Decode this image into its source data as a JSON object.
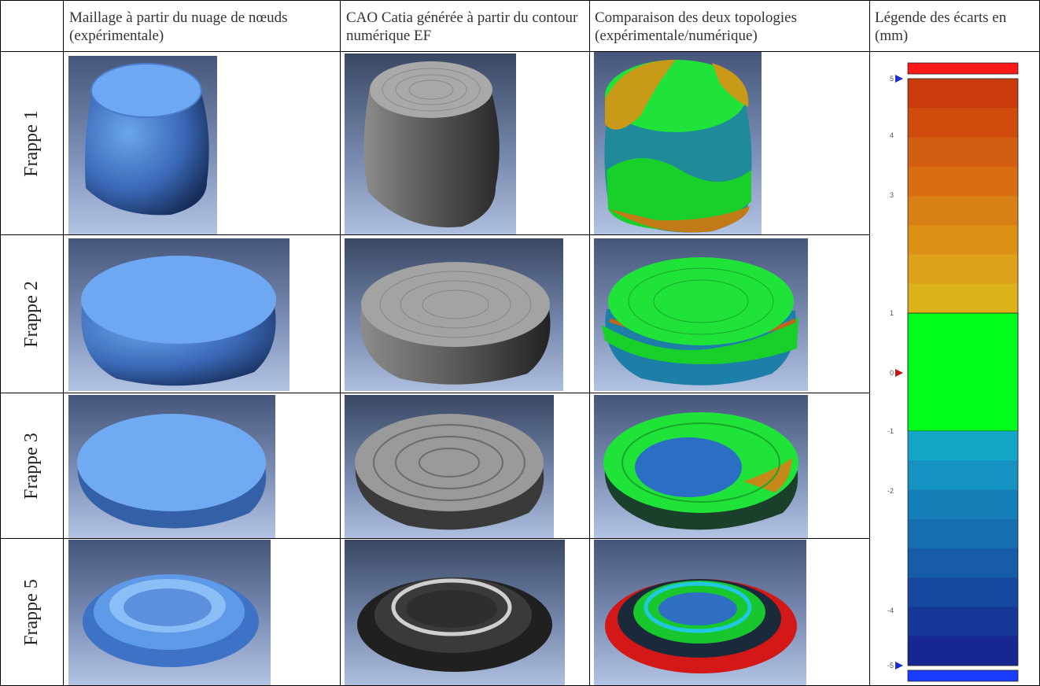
{
  "headers": {
    "col1": "Maillage à partir du nuage de nœuds (expérimentale)",
    "col2": "CAO Catia générée à partir du contour numérique EF",
    "col3": "Comparaison des deux topologies (expérimentale/numérique)",
    "col4": "Légende des écarts en (mm)"
  },
  "rows": [
    {
      "label": "Frappe 1"
    },
    {
      "label": "Frappe 2"
    },
    {
      "label": "Frappe 3"
    },
    {
      "label": "Frappe 5"
    }
  ],
  "legend": {
    "ticks": [
      "5",
      "4",
      "3",
      "1",
      "0",
      "-1",
      "-2",
      "-4",
      "-5"
    ],
    "colors": {
      "over": "#ff1a1a",
      "under": "#1a3cff",
      "within": "#00ff1a",
      "positive": [
        "#c93a0c",
        "#cf4c0d",
        "#d35d10",
        "#d86d12",
        "#d98015",
        "#dd9016",
        "#dea218",
        "#dcb21a"
      ],
      "negative": [
        "#13a6c6",
        "#1493c0",
        "#1580b8",
        "#166eb0",
        "#165ca8",
        "#1749a0",
        "#173798",
        "#172690"
      ]
    }
  }
}
